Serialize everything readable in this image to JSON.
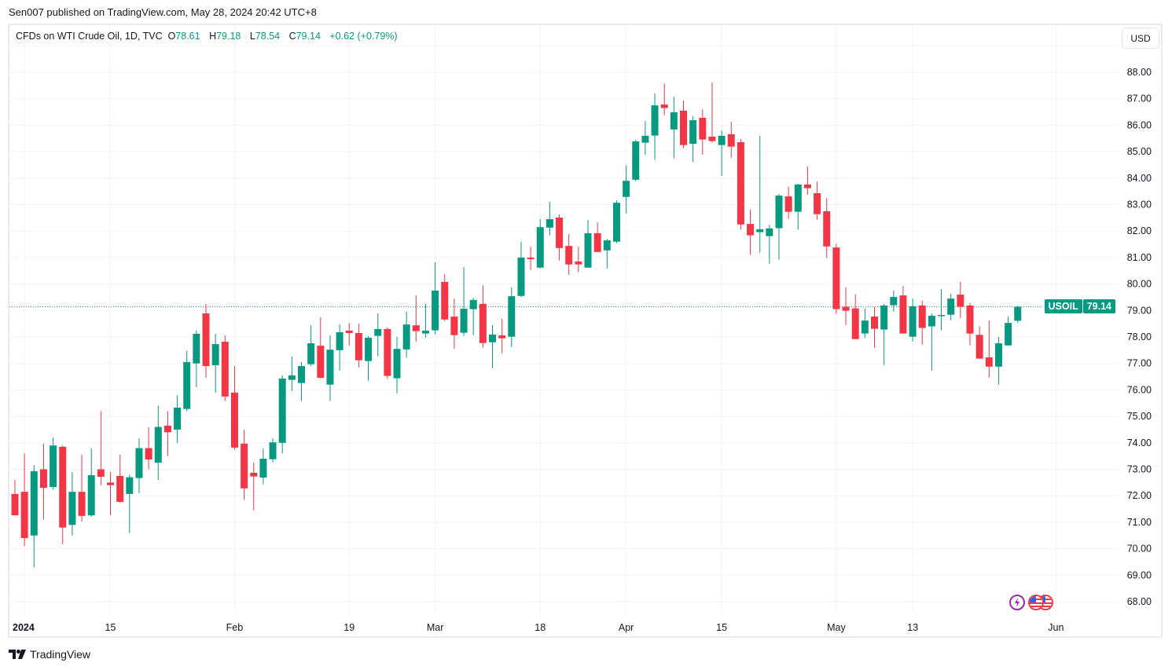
{
  "published": "Sen007 published on TradingView.com, May 28, 2024 20:42 UTC+8",
  "legend": {
    "title": "CFDs on WTI Crude Oil, 1D, TVC",
    "o_label": "O",
    "o": "78.61",
    "h_label": "H",
    "h": "79.18",
    "l_label": "L",
    "l": "78.54",
    "c_label": "C",
    "c": "79.14",
    "change": "+0.62 (+0.79%)"
  },
  "currency_button": "USD",
  "last_price": {
    "symbol": "USOIL",
    "value": "79.14"
  },
  "brand": "TradingView",
  "colors": {
    "up": "#089981",
    "down": "#F23645",
    "grid": "#f0f3fa",
    "text": "#131722"
  },
  "chart_data": {
    "type": "candlestick",
    "title": "CFDs on WTI Crude Oil, 1D, TVC",
    "symbol": "USOIL",
    "ylabel": "USD",
    "ylim": [
      68,
      88
    ],
    "grid": true,
    "y_ticks": [
      "68.00",
      "69.00",
      "70.00",
      "71.00",
      "72.00",
      "73.00",
      "74.00",
      "75.00",
      "76.00",
      "77.00",
      "78.00",
      "79.00",
      "80.00",
      "81.00",
      "82.00",
      "83.00",
      "84.00",
      "85.00",
      "86.00",
      "87.00",
      "88.00"
    ],
    "x_ticks": [
      {
        "label": "2024",
        "bar": 1
      },
      {
        "label": "15",
        "bar": 10
      },
      {
        "label": "Feb",
        "bar": 23
      },
      {
        "label": "19",
        "bar": 35
      },
      {
        "label": "Mar",
        "bar": 44
      },
      {
        "label": "18",
        "bar": 55
      },
      {
        "label": "Apr",
        "bar": 64
      },
      {
        "label": "15",
        "bar": 74
      },
      {
        "label": "May",
        "bar": 86
      },
      {
        "label": "13",
        "bar": 94
      },
      {
        "label": "Jun",
        "bar": 109
      }
    ],
    "ohlc_fields": [
      "open",
      "high",
      "low",
      "close"
    ],
    "candles": [
      [
        72.07,
        72.6,
        71.26,
        71.26
      ],
      [
        72.15,
        73.6,
        70.1,
        70.4
      ],
      [
        70.5,
        73.16,
        69.3,
        72.93
      ],
      [
        73.0,
        73.97,
        71.1,
        72.3
      ],
      [
        72.33,
        74.2,
        72.24,
        73.9
      ],
      [
        73.85,
        73.9,
        70.17,
        70.8
      ],
      [
        70.9,
        72.9,
        70.5,
        72.15
      ],
      [
        72.15,
        73.55,
        71.03,
        71.24
      ],
      [
        71.26,
        73.8,
        71.2,
        72.78
      ],
      [
        73.0,
        75.2,
        72.4,
        72.72
      ],
      [
        72.5,
        72.9,
        71.26,
        72.4
      ],
      [
        72.75,
        73.55,
        71.74,
        71.77
      ],
      [
        72.07,
        72.8,
        70.6,
        72.7
      ],
      [
        72.67,
        74.17,
        72.1,
        73.8
      ],
      [
        73.8,
        74.6,
        73.0,
        73.37
      ],
      [
        73.25,
        75.4,
        72.6,
        74.6
      ],
      [
        74.65,
        75.2,
        73.5,
        74.4
      ],
      [
        74.5,
        75.8,
        74.0,
        75.33
      ],
      [
        75.28,
        77.47,
        75.19,
        77.05
      ],
      [
        77.0,
        78.24,
        76.1,
        78.12
      ],
      [
        78.89,
        79.25,
        76.46,
        76.9
      ],
      [
        76.93,
        78.12,
        75.9,
        77.73
      ],
      [
        77.82,
        78.06,
        75.58,
        75.75
      ],
      [
        75.9,
        76.9,
        73.74,
        73.82
      ],
      [
        73.97,
        74.5,
        71.84,
        72.28
      ],
      [
        72.87,
        73.25,
        71.45,
        72.73
      ],
      [
        72.69,
        73.79,
        72.43,
        73.4
      ],
      [
        73.38,
        74.17,
        73.26,
        74.02
      ],
      [
        74.0,
        76.55,
        73.6,
        76.43
      ],
      [
        76.38,
        77.26,
        75.96,
        76.55
      ],
      [
        76.26,
        77.05,
        75.58,
        76.9
      ],
      [
        76.97,
        78.45,
        76.9,
        77.76
      ],
      [
        77.67,
        78.74,
        76.43,
        76.46
      ],
      [
        76.2,
        78.06,
        75.58,
        77.52
      ],
      [
        77.5,
        78.48,
        76.72,
        78.18
      ],
      [
        78.24,
        78.53,
        77.67,
        78.15
      ],
      [
        78.15,
        78.5,
        76.85,
        77.12
      ],
      [
        77.09,
        78.03,
        76.35,
        77.97
      ],
      [
        78.04,
        78.89,
        77.27,
        78.3
      ],
      [
        78.3,
        78.36,
        76.41,
        76.53
      ],
      [
        76.44,
        78.0,
        75.87,
        77.55
      ],
      [
        77.53,
        78.95,
        77.21,
        78.47
      ],
      [
        78.44,
        79.57,
        77.83,
        78.22
      ],
      [
        78.13,
        79.25,
        77.98,
        78.24
      ],
      [
        78.25,
        80.82,
        78.1,
        79.75
      ],
      [
        80.08,
        80.37,
        78.6,
        78.66
      ],
      [
        78.77,
        79.45,
        77.56,
        78.07
      ],
      [
        78.16,
        80.64,
        78.04,
        79.07
      ],
      [
        79.05,
        79.48,
        78.07,
        79.4
      ],
      [
        79.25,
        79.96,
        77.6,
        77.77
      ],
      [
        77.8,
        78.44,
        76.82,
        78.09
      ],
      [
        78.06,
        78.68,
        77.39,
        77.95
      ],
      [
        78.01,
        79.87,
        77.62,
        79.54
      ],
      [
        79.55,
        81.59,
        79.5,
        81.0
      ],
      [
        81.0,
        81.41,
        80.53,
        80.94
      ],
      [
        80.62,
        82.45,
        80.59,
        82.15
      ],
      [
        82.13,
        83.1,
        81.84,
        82.45
      ],
      [
        82.51,
        82.63,
        80.89,
        81.36
      ],
      [
        81.44,
        81.89,
        80.35,
        80.74
      ],
      [
        80.85,
        81.41,
        80.44,
        80.74
      ],
      [
        80.62,
        82.42,
        80.62,
        81.92
      ],
      [
        81.92,
        82.33,
        81.21,
        81.21
      ],
      [
        81.27,
        81.71,
        80.59,
        81.65
      ],
      [
        81.6,
        83.16,
        81.54,
        83.07
      ],
      [
        83.29,
        84.47,
        82.67,
        83.9
      ],
      [
        83.94,
        85.45,
        83.88,
        85.39
      ],
      [
        85.34,
        86.16,
        84.89,
        85.6
      ],
      [
        85.61,
        87.2,
        84.69,
        86.75
      ],
      [
        86.78,
        87.58,
        86.38,
        86.65
      ],
      [
        85.84,
        87.08,
        84.75,
        86.49
      ],
      [
        86.55,
        86.93,
        85.13,
        85.25
      ],
      [
        85.3,
        86.34,
        84.6,
        86.19
      ],
      [
        86.28,
        86.6,
        84.89,
        85.46
      ],
      [
        85.57,
        87.61,
        85.34,
        85.4
      ],
      [
        85.25,
        85.8,
        84.09,
        85.6
      ],
      [
        85.66,
        86.13,
        84.77,
        85.19
      ],
      [
        85.36,
        85.48,
        82.05,
        82.25
      ],
      [
        82.27,
        82.81,
        81.1,
        81.84
      ],
      [
        81.96,
        85.6,
        81.19,
        82.07
      ],
      [
        81.81,
        82.24,
        80.77,
        82.1
      ],
      [
        82.11,
        83.4,
        80.92,
        83.34
      ],
      [
        83.31,
        83.67,
        82.46,
        82.73
      ],
      [
        82.73,
        83.79,
        82.05,
        83.76
      ],
      [
        83.76,
        84.44,
        83.38,
        83.62
      ],
      [
        83.43,
        83.87,
        82.43,
        82.64
      ],
      [
        82.75,
        83.25,
        80.98,
        81.42
      ],
      [
        81.38,
        81.53,
        78.87,
        79.05
      ],
      [
        79.14,
        79.88,
        78.45,
        78.99
      ],
      [
        79.08,
        79.61,
        77.92,
        77.92
      ],
      [
        78.13,
        79.07,
        77.95,
        78.62
      ],
      [
        78.77,
        79.13,
        77.59,
        78.31
      ],
      [
        78.28,
        79.25,
        76.94,
        79.19
      ],
      [
        79.2,
        79.75,
        78.96,
        79.51
      ],
      [
        79.57,
        79.93,
        78.13,
        78.13
      ],
      [
        78.01,
        79.45,
        77.83,
        79.16
      ],
      [
        79.19,
        79.37,
        77.71,
        78.34
      ],
      [
        78.4,
        78.89,
        76.73,
        78.8
      ],
      [
        78.8,
        79.81,
        78.25,
        78.83
      ],
      [
        78.84,
        79.63,
        78.63,
        79.45
      ],
      [
        79.6,
        80.08,
        78.72,
        79.14
      ],
      [
        79.19,
        79.28,
        77.68,
        78.13
      ],
      [
        78.08,
        78.4,
        77.18,
        77.18
      ],
      [
        77.23,
        78.62,
        76.47,
        76.88
      ],
      [
        76.88,
        78.0,
        76.2,
        77.76
      ],
      [
        77.68,
        78.77,
        77.68,
        78.53
      ],
      [
        78.61,
        79.18,
        78.54,
        79.14
      ]
    ],
    "last_close": 79.14
  }
}
